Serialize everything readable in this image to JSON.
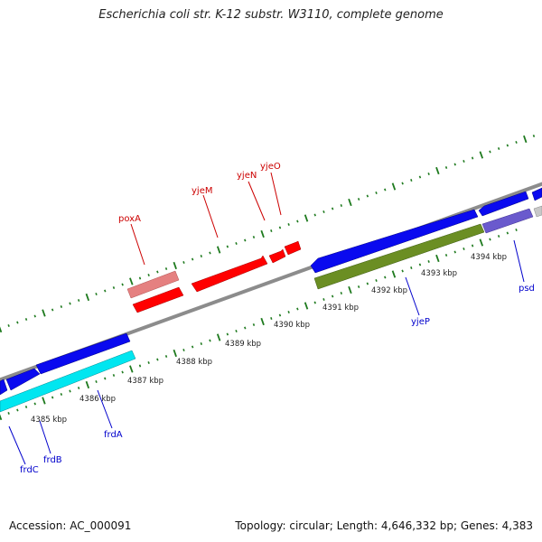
{
  "title": "Escherichia coli str. K-12 substr. W3110, complete genome",
  "footer": {
    "accession": "Accession: AC_000091",
    "summary": "Topology: circular; Length: 4,646,332 bp; Genes: 4,383"
  },
  "colors": {
    "red": "#ff0000",
    "pink": "#e58080",
    "blue": "#0a0aef",
    "cyan": "#00e6f0",
    "olive": "#6b8e23",
    "purple": "#6a5acd",
    "gray": "#c8c8c8",
    "backbone": "#8c8c8c",
    "tick": "#1e7a1e",
    "red_label": "#cc0000",
    "blue_label": "#0000cc"
  },
  "scale": {
    "labels": [
      "4385 kbp",
      "4386 kbp",
      "4387 kbp",
      "4388 kbp",
      "4389 kbp",
      "4390 kbp",
      "4391 kbp",
      "4392 kbp",
      "4393 kbp",
      "4394 kbp"
    ]
  },
  "genes_labeled": [
    {
      "name": "poxA",
      "color": "red"
    },
    {
      "name": "yjeM",
      "color": "red"
    },
    {
      "name": "yjeN",
      "color": "red"
    },
    {
      "name": "yjeO",
      "color": "red"
    },
    {
      "name": "yjeP",
      "color": "blue"
    },
    {
      "name": "psd",
      "color": "blue"
    },
    {
      "name": "frdA",
      "color": "blue"
    },
    {
      "name": "frdB",
      "color": "blue"
    },
    {
      "name": "frdC",
      "color": "blue"
    }
  ]
}
